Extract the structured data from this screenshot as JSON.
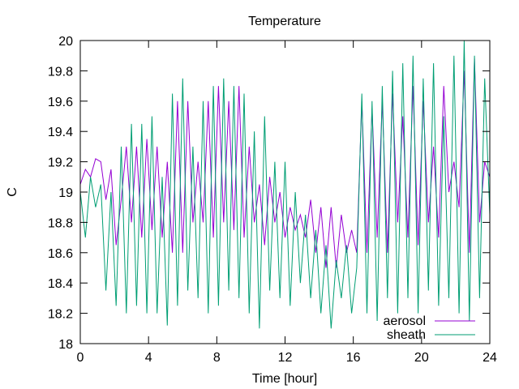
{
  "chart_data": {
    "type": "line",
    "title": "Temperature",
    "xlabel": "Time [hour]",
    "ylabel": "C",
    "xlim": [
      0,
      24
    ],
    "ylim": [
      18,
      20
    ],
    "xticks": [
      0,
      4,
      8,
      12,
      16,
      20,
      24
    ],
    "yticks": [
      18,
      18.2,
      18.4,
      18.6,
      18.8,
      19,
      19.2,
      19.4,
      19.6,
      19.8,
      20
    ],
    "grid": false,
    "legend_position": "bottom-right",
    "series": [
      {
        "name": "aerosol",
        "color": "#9400d3",
        "x": [
          0,
          0.3,
          0.6,
          0.9,
          1.2,
          1.5,
          1.8,
          2.1,
          2.4,
          2.7,
          3.0,
          3.3,
          3.6,
          3.9,
          4.2,
          4.5,
          4.8,
          5.1,
          5.4,
          5.7,
          6.0,
          6.3,
          6.6,
          6.9,
          7.2,
          7.5,
          7.8,
          8.1,
          8.4,
          8.7,
          9.0,
          9.3,
          9.6,
          9.9,
          10.2,
          10.5,
          10.8,
          11.1,
          11.4,
          11.7,
          12.0,
          12.3,
          12.6,
          12.9,
          13.2,
          13.5,
          13.8,
          14.1,
          14.4,
          14.7,
          15.0,
          15.3,
          15.6,
          15.9,
          16.2,
          16.5,
          16.8,
          17.1,
          17.4,
          17.7,
          18.0,
          18.3,
          18.6,
          18.9,
          19.2,
          19.5,
          19.8,
          20.1,
          20.4,
          20.7,
          21.0,
          21.3,
          21.6,
          21.9,
          22.2,
          22.5,
          22.8,
          23.1,
          23.4,
          23.7,
          24.0
        ],
        "y": [
          19.05,
          19.15,
          19.1,
          19.22,
          19.2,
          18.95,
          19.15,
          18.65,
          18.95,
          19.3,
          18.8,
          19.3,
          18.7,
          19.35,
          18.75,
          19.3,
          18.7,
          19.2,
          18.6,
          19.6,
          18.6,
          19.6,
          18.8,
          19.2,
          18.8,
          19.6,
          18.7,
          19.7,
          18.8,
          19.6,
          18.75,
          19.7,
          18.7,
          19.3,
          18.8,
          19.05,
          18.65,
          19.1,
          18.8,
          19.0,
          18.7,
          18.9,
          18.75,
          18.85,
          18.7,
          18.95,
          18.6,
          18.9,
          18.5,
          18.9,
          18.5,
          18.85,
          18.6,
          18.75,
          18.6,
          19.6,
          18.6,
          19.55,
          18.7,
          19.6,
          18.6,
          19.65,
          18.8,
          19.5,
          18.7,
          19.7,
          18.65,
          19.6,
          18.8,
          19.3,
          18.7,
          19.7,
          19.0,
          19.2,
          18.9,
          19.8,
          18.6,
          19.88,
          18.8,
          19.2,
          19.1
        ]
      },
      {
        "name": "sheath",
        "color": "#009e73",
        "x": [
          0,
          0.3,
          0.6,
          0.9,
          1.2,
          1.5,
          1.8,
          2.1,
          2.4,
          2.7,
          3.0,
          3.3,
          3.6,
          3.9,
          4.2,
          4.5,
          4.8,
          5.1,
          5.4,
          5.7,
          6.0,
          6.3,
          6.6,
          6.9,
          7.2,
          7.5,
          7.8,
          8.1,
          8.4,
          8.7,
          9.0,
          9.3,
          9.6,
          9.9,
          10.2,
          10.5,
          10.8,
          11.1,
          11.4,
          11.7,
          12.0,
          12.3,
          12.6,
          12.9,
          13.2,
          13.5,
          13.8,
          14.1,
          14.4,
          14.7,
          15.0,
          15.3,
          15.6,
          15.9,
          16.2,
          16.5,
          16.8,
          17.1,
          17.4,
          17.7,
          18.0,
          18.3,
          18.6,
          18.9,
          19.2,
          19.5,
          19.8,
          20.1,
          20.4,
          20.7,
          21.0,
          21.3,
          21.6,
          21.9,
          22.2,
          22.5,
          22.8,
          23.1,
          23.4,
          23.7,
          24.0
        ],
        "y": [
          19.0,
          18.7,
          19.1,
          18.9,
          19.05,
          18.35,
          19.0,
          18.25,
          19.3,
          18.2,
          19.45,
          18.25,
          19.45,
          18.2,
          19.5,
          18.2,
          19.1,
          18.12,
          19.65,
          18.25,
          19.75,
          18.35,
          19.3,
          18.3,
          19.6,
          18.2,
          19.7,
          18.25,
          19.75,
          18.35,
          19.7,
          18.3,
          19.65,
          18.2,
          19.4,
          18.1,
          19.5,
          18.35,
          19.2,
          18.3,
          19.2,
          18.25,
          19.0,
          18.4,
          18.85,
          18.3,
          18.75,
          18.2,
          18.65,
          18.1,
          18.55,
          18.3,
          18.65,
          18.2,
          18.5,
          19.65,
          18.2,
          19.6,
          18.15,
          19.7,
          18.3,
          19.8,
          18.2,
          19.85,
          18.3,
          19.9,
          18.2,
          19.75,
          18.35,
          19.85,
          18.25,
          19.5,
          18.3,
          19.9,
          18.2,
          20.0,
          18.15,
          19.9,
          18.3,
          19.75,
          18.85
        ]
      }
    ]
  }
}
